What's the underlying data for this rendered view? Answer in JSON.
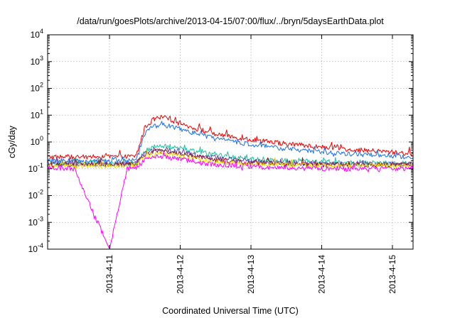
{
  "chart_data": {
    "type": "line",
    "title": "/data/run/goesPlots/archive/2013-04-15/07:00/flux/../bryn/5daysEarthData.plot",
    "xlabel": "Coordinated Universal Time (UTC)",
    "ylabel": "cGy/day",
    "yscale": "log",
    "ylim": [
      0.0001,
      10000
    ],
    "xlim": [
      "2013-04-10 03:00",
      "2013-04-15 07:00"
    ],
    "x_ticks": [
      "2013-4-11",
      "2013-4-12",
      "2013-4-13",
      "2013-4-14",
      "2013-4-15"
    ],
    "y_ticks": [
      {
        "base": "10",
        "exp": "-4",
        "value": 0.0001
      },
      {
        "base": "10",
        "exp": "-3",
        "value": 0.001
      },
      {
        "base": "10",
        "exp": "-2",
        "value": 0.01
      },
      {
        "base": "10",
        "exp": "-1",
        "value": 0.1
      },
      {
        "base": "10",
        "exp": "0",
        "value": 1
      },
      {
        "base": "10",
        "exp": "1",
        "value": 10
      },
      {
        "base": "10",
        "exp": "2",
        "value": 100
      },
      {
        "base": "10",
        "exp": "3",
        "value": 1000
      },
      {
        "base": "10",
        "exp": "4",
        "value": 10000
      }
    ],
    "grid": true,
    "legend": "none",
    "x": [
      "2013-04-10 03:00",
      "2013-04-10 12:00",
      "2013-04-11 00:00",
      "2013-04-11 06:00",
      "2013-04-11 09:00",
      "2013-04-11 12:00",
      "2013-04-11 15:00",
      "2013-04-11 18:00",
      "2013-04-12 00:00",
      "2013-04-12 06:00",
      "2013-04-12 12:00",
      "2013-04-13 00:00",
      "2013-04-13 12:00",
      "2013-04-14 00:00",
      "2013-04-14 12:00",
      "2013-04-15 00:00",
      "2013-04-15 07:00"
    ],
    "series": [
      {
        "color": "#ee0000",
        "values": [
          0.28,
          0.27,
          0.28,
          0.28,
          0.3,
          3.5,
          7.0,
          8.5,
          5.0,
          3.0,
          2.0,
          1.2,
          0.85,
          0.65,
          0.5,
          0.42,
          0.36
        ]
      },
      {
        "color": "#1a6fe8",
        "values": [
          0.2,
          0.2,
          0.2,
          0.2,
          0.22,
          2.2,
          3.8,
          4.5,
          3.0,
          2.0,
          1.3,
          0.8,
          0.55,
          0.42,
          0.34,
          0.3,
          0.26
        ]
      },
      {
        "color": "#1fbf9f",
        "values": [
          0.16,
          0.16,
          0.16,
          0.16,
          0.18,
          0.45,
          0.65,
          0.72,
          0.55,
          0.42,
          0.32,
          0.24,
          0.2,
          0.18,
          0.17,
          0.16,
          0.16
        ]
      },
      {
        "color": "#6a3fb5",
        "values": [
          0.15,
          0.15,
          0.15,
          0.15,
          0.16,
          0.38,
          0.5,
          0.52,
          0.42,
          0.32,
          0.25,
          0.19,
          0.16,
          0.15,
          0.15,
          0.15,
          0.15
        ]
      },
      {
        "color": "#8b1a1a",
        "values": [
          0.14,
          0.14,
          0.14,
          0.14,
          0.15,
          0.34,
          0.44,
          0.45,
          0.36,
          0.28,
          0.22,
          0.17,
          0.15,
          0.14,
          0.14,
          0.14,
          0.14
        ]
      },
      {
        "color": "#e8e000",
        "values": [
          0.13,
          0.13,
          0.13,
          0.13,
          0.14,
          0.28,
          0.34,
          0.34,
          0.28,
          0.22,
          0.18,
          0.15,
          0.14,
          0.13,
          0.13,
          0.13,
          0.13
        ]
      },
      {
        "color": "#ff00ff",
        "values": [
          0.11,
          0.1,
          0.0001,
          0.1,
          0.11,
          0.22,
          0.28,
          0.28,
          0.22,
          0.17,
          0.14,
          0.12,
          0.11,
          0.1,
          0.1,
          0.1,
          0.1
        ]
      }
    ]
  }
}
